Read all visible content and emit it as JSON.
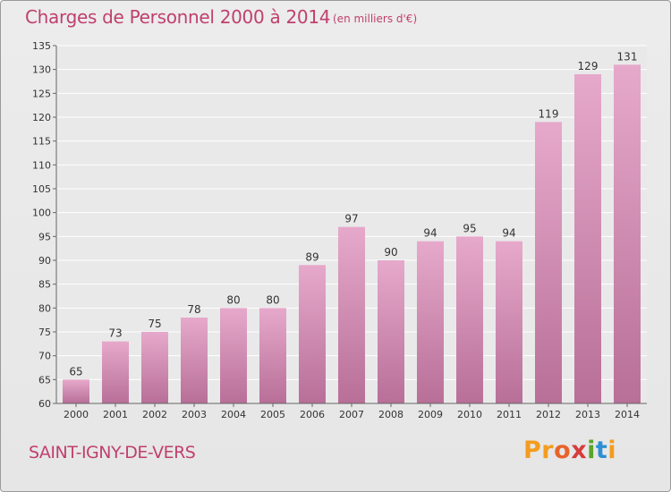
{
  "title": "Charges de Personnel 2000 à 2014",
  "subtitle": "(en milliers d'€)",
  "town": "SAINT-IGNY-DE-VERS",
  "logo": {
    "text": "Proxiti",
    "colors": [
      "#f39c1f",
      "#f39c1f",
      "#e8632b",
      "#d63c3c",
      "#5aa52b",
      "#2e8fd4",
      "#f39c1f"
    ]
  },
  "colors": {
    "accent": "#c0406e",
    "bar_top": "#e6a9cb",
    "bar_bottom": "#b86f98",
    "grid": "#ffffff",
    "axis_text": "#333333"
  },
  "chart_data": {
    "type": "bar",
    "categories": [
      "2000",
      "2001",
      "2002",
      "2003",
      "2004",
      "2005",
      "2006",
      "2007",
      "2008",
      "2009",
      "2010",
      "2011",
      "2012",
      "2013",
      "2014"
    ],
    "values": [
      65,
      73,
      75,
      78,
      80,
      80,
      89,
      97,
      90,
      94,
      95,
      94,
      119,
      129,
      131
    ],
    "ylim": [
      60,
      135
    ],
    "yticks": [
      60,
      65,
      70,
      75,
      80,
      85,
      90,
      95,
      100,
      105,
      110,
      115,
      120,
      125,
      130,
      135
    ],
    "grid": true,
    "data_labels": true
  }
}
